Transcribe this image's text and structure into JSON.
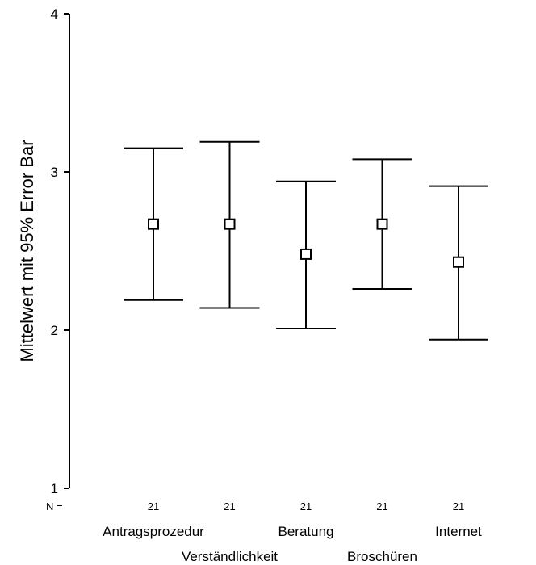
{
  "chart_data": {
    "type": "errorbar",
    "ylabel": "Mittelwert mit 95% Error Bar",
    "xlabel": "",
    "ylim": [
      1,
      4
    ],
    "yticks": [
      1,
      2,
      3,
      4
    ],
    "grid": false,
    "n_prefix": "N =",
    "categories": [
      "Antragsprozedur",
      "Verständlichkeit",
      "Beratung",
      "Broschüren",
      "Internet"
    ],
    "n": [
      21,
      21,
      21,
      21,
      21
    ],
    "mean": [
      2.67,
      2.67,
      2.48,
      2.67,
      2.43
    ],
    "lower": [
      2.19,
      2.14,
      2.01,
      2.26,
      1.94
    ],
    "upper": [
      3.15,
      3.19,
      2.94,
      3.08,
      2.91
    ]
  },
  "colors": {
    "line": "#000000",
    "marker_fill": "#ffffff"
  }
}
